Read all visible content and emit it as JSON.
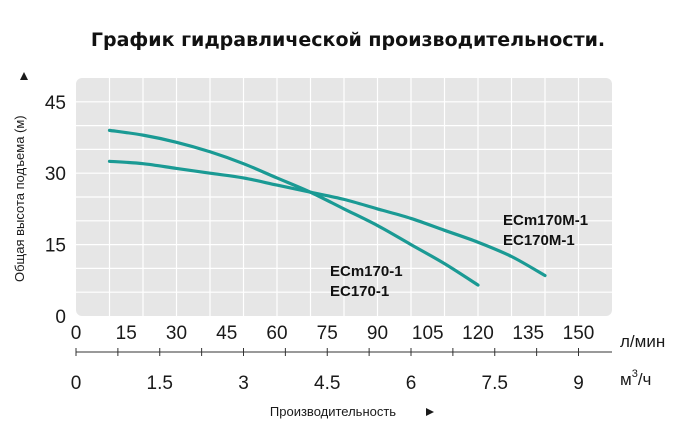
{
  "title": "График гидравлической производительности.",
  "colors": {
    "plot_background": "#e6e6e6",
    "grid": "#ffffff",
    "curve": "#1a9a94",
    "text": "#1a1a1a"
  },
  "chart_data": {
    "type": "line",
    "title": "График гидравлической производительности.",
    "ylabel": "Общая высота подъема (м)",
    "xlabel": "Производительность",
    "x_unit_primary": "л/мин",
    "x_unit_secondary_base": "м",
    "x_unit_secondary_sup": "3",
    "x_unit_secondary_tail": "/ч",
    "ylim": [
      0,
      50
    ],
    "xlim": [
      0,
      160
    ],
    "y_ticks": [
      0,
      15,
      30,
      45
    ],
    "x_ticks_primary": [
      0,
      15,
      30,
      45,
      60,
      75,
      90,
      105,
      120,
      135,
      150
    ],
    "x_ticks_secondary": [
      {
        "label": "0",
        "value_m3h": 0
      },
      {
        "label": "1.5",
        "value_m3h": 1.5
      },
      {
        "label": "3",
        "value_m3h": 3
      },
      {
        "label": "4.5",
        "value_m3h": 4.5
      },
      {
        "label": "6",
        "value_m3h": 6
      },
      {
        "label": "7.5",
        "value_m3h": 7.5
      },
      {
        "label": "9",
        "value_m3h": 9
      }
    ],
    "grid": true,
    "series": [
      {
        "name": "ECm170-1 EC170-1",
        "label_lines": [
          "ECm170-1",
          "EC170-1"
        ],
        "x": [
          10,
          20,
          30,
          40,
          50,
          60,
          70,
          80,
          90,
          100,
          110,
          120
        ],
        "y": [
          39,
          38,
          36.5,
          34.5,
          32,
          29,
          26,
          22.5,
          19,
          15,
          11,
          6.5
        ]
      },
      {
        "name": "ECm170M-1 EC170M-1",
        "label_lines": [
          "ECm170M-1",
          "EC170M-1"
        ],
        "x": [
          10,
          20,
          30,
          40,
          50,
          60,
          70,
          80,
          90,
          100,
          110,
          120,
          130,
          140
        ],
        "y": [
          32.5,
          32,
          31,
          30,
          29,
          27.5,
          26,
          24.5,
          22.5,
          20.5,
          18,
          15.5,
          12.5,
          8.5
        ]
      }
    ]
  }
}
